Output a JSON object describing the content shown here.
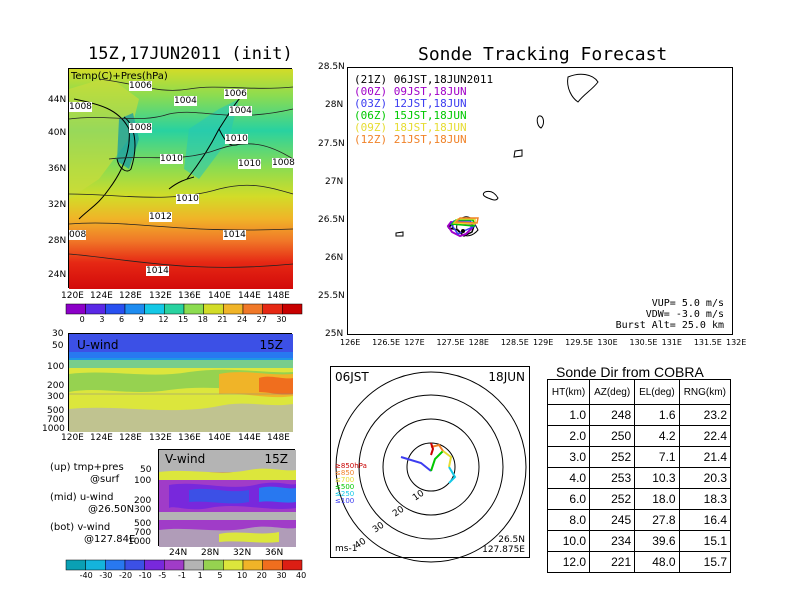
{
  "left": {
    "title": "15Z,17JUN2011 (init)",
    "map_label": "Temp(C)+Pres(hPa)",
    "map_lat_ticks": [
      "44N",
      "40N",
      "36N",
      "32N",
      "28N",
      "24N"
    ],
    "lon_ticks": [
      "120E",
      "124E",
      "128E",
      "132E",
      "136E",
      "140E",
      "144E",
      "148E"
    ],
    "isobars": [
      "1006",
      "1004",
      "1008",
      "1006",
      "1008",
      "1004",
      "1010",
      "1010",
      "1010",
      "1008",
      "1010",
      "1012",
      "1014",
      "008",
      "1014"
    ],
    "temp_colorbar": [
      "0",
      "3",
      "6",
      "9",
      "12",
      "15",
      "18",
      "21",
      "24",
      "27",
      "30"
    ],
    "uwind_label": "U-wind",
    "uwind_time": "15Z",
    "uwind_levels": [
      "30",
      "50",
      "100",
      "200",
      "300",
      "500",
      "700",
      "1000"
    ],
    "vwind_label": "V-wind",
    "vwind_time": "15Z",
    "vwind_levels": [
      "50",
      "100",
      "200",
      "300",
      "500",
      "700",
      "1000"
    ],
    "vwind_lat_ticks": [
      "24N",
      "28N",
      "32N",
      "36N"
    ],
    "wind_colorbar": [
      "-40",
      "-30",
      "-20",
      "-10",
      "-5",
      "-1",
      "1",
      "5",
      "10",
      "20",
      "30",
      "40"
    ],
    "notes": [
      "(up) tmp+pres",
      "@surf",
      "(mid) u-wind",
      "@26.50N",
      "(bot) v-wind",
      "@127.84E"
    ]
  },
  "forecast": {
    "title": "Sonde Tracking Forecast",
    "legend": [
      {
        "tag": "(21Z)",
        "time": "06JST,18JUN2011",
        "color": "#000000"
      },
      {
        "tag": "(00Z)",
        "time": "09JST,18JUN",
        "color": "#a000c8"
      },
      {
        "tag": "(03Z)",
        "time": "12JST,18JUN",
        "color": "#3c3cf0"
      },
      {
        "tag": "(06Z)",
        "time": "15JST,18JUN",
        "color": "#00c800"
      },
      {
        "tag": "(09Z)",
        "time": "18JST,18JUN",
        "color": "#e6dc32"
      },
      {
        "tag": "(12Z)",
        "time": "21JST,18JUN",
        "color": "#f08228"
      }
    ],
    "lat_ticks": [
      "28.5N",
      "28N",
      "27.5N",
      "27N",
      "26.5N",
      "26N",
      "25.5N",
      "25N"
    ],
    "lon_ticks": [
      "126E",
      "126.5E",
      "127E",
      "127.5E",
      "128E",
      "128.5E",
      "129E",
      "129.5E",
      "130E",
      "130.5E",
      "131E",
      "131.5E",
      "132E"
    ],
    "params": [
      "VUP= 5.0 m/s",
      "VDW= -3.0 m/s",
      "Burst Alt= 25.0 km"
    ]
  },
  "polar": {
    "time": "06JST",
    "date": "18JUN",
    "range_labels": [
      "10",
      "20",
      "30",
      "40"
    ],
    "legend": [
      "≥850hPa",
      "≤850",
      "≤700",
      "≤500",
      "≤250",
      "≤100"
    ],
    "unit": "ms-1",
    "location": [
      "26.5N",
      "127.875E"
    ]
  },
  "sonde": {
    "title": "Sonde Dir from COBRA",
    "headers": [
      "HT(km)",
      "AZ(deg)",
      "EL(deg)",
      "RNG(km)"
    ],
    "rows": [
      [
        "1.0",
        "248",
        "1.6",
        "23.2"
      ],
      [
        "2.0",
        "250",
        "4.2",
        "22.4"
      ],
      [
        "3.0",
        "252",
        "7.1",
        "21.4"
      ],
      [
        "4.0",
        "253",
        "10.3",
        "20.3"
      ],
      [
        "6.0",
        "252",
        "18.0",
        "18.3"
      ],
      [
        "8.0",
        "245",
        "27.8",
        "16.4"
      ],
      [
        "10.0",
        "234",
        "39.6",
        "15.1"
      ],
      [
        "12.0",
        "221",
        "48.0",
        "15.7"
      ]
    ]
  },
  "colors": {
    "temp_scale": [
      "#8c00c8",
      "#5a28e6",
      "#2850f0",
      "#1e8cf0",
      "#14c8e6",
      "#28d2a0",
      "#8cdc50",
      "#d2dc28",
      "#f0b428",
      "#f07828",
      "#e62814",
      "#c80000"
    ],
    "wind_scale": [
      "#0aa0b4",
      "#14b4dc",
      "#2878f0",
      "#3c50e6",
      "#7828dc",
      "#a03cc8",
      "#b4b4b4",
      "#96d250",
      "#dce63c",
      "#f0b428",
      "#f06e1e",
      "#dc1e14"
    ]
  }
}
